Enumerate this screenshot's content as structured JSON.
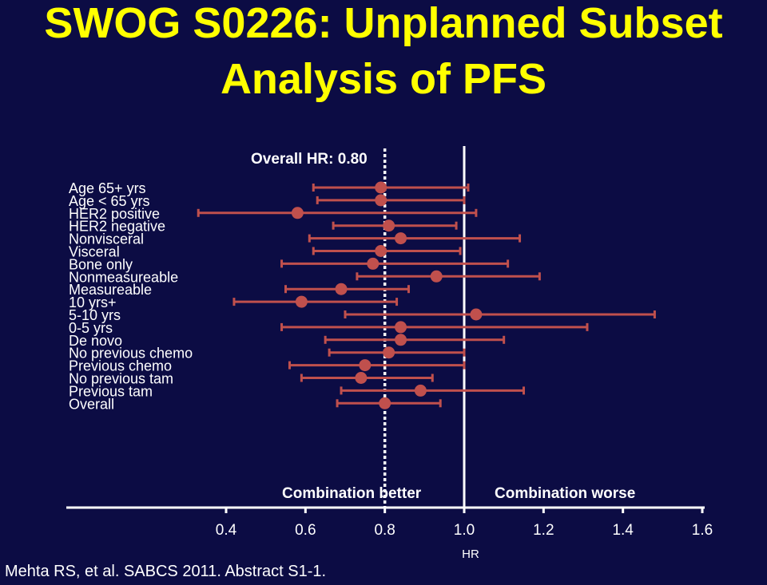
{
  "slide": {
    "title_line1": "SWOG S0226: Unplanned Subset",
    "title_line2": "Analysis of PFS",
    "citation": "Mehta RS, et al. SABCS 2011. Abstract S1-1."
  },
  "colors": {
    "background": "#0c0c44",
    "title": "#ffff00",
    "marker": "#c0504d",
    "text": "#ffffff"
  },
  "chart_data": {
    "type": "forest",
    "overall_label": "Overall HR: 0.80",
    "overall_hr": 0.8,
    "reference_hr": 1.0,
    "xlabel": "HR",
    "xlim": [
      0.4,
      1.6
    ],
    "xticks": [
      "0.4",
      "0.6",
      "0.8",
      "1.0",
      "1.2",
      "1.4",
      "1.6"
    ],
    "left_annotation": "Combination better",
    "right_annotation": "Combination worse",
    "rows": [
      {
        "label": "Age 65+ yrs",
        "hr": 0.79,
        "lo": 0.62,
        "hi": 1.01
      },
      {
        "label": "Age < 65 yrs",
        "hr": 0.79,
        "lo": 0.63,
        "hi": 1.0
      },
      {
        "label": "HER2 positive",
        "hr": 0.58,
        "lo": 0.33,
        "hi": 1.03
      },
      {
        "label": "HER2 negative",
        "hr": 0.81,
        "lo": 0.67,
        "hi": 0.98
      },
      {
        "label": "Nonvisceral",
        "hr": 0.84,
        "lo": 0.61,
        "hi": 1.14
      },
      {
        "label": "Visceral",
        "hr": 0.79,
        "lo": 0.62,
        "hi": 0.99
      },
      {
        "label": "Bone only",
        "hr": 0.77,
        "lo": 0.54,
        "hi": 1.11
      },
      {
        "label": "Nonmeasureable",
        "hr": 0.93,
        "lo": 0.73,
        "hi": 1.19
      },
      {
        "label": "Measureable",
        "hr": 0.69,
        "lo": 0.55,
        "hi": 0.86
      },
      {
        "label": "10 yrs+",
        "hr": 0.59,
        "lo": 0.42,
        "hi": 0.83
      },
      {
        "label": "5-10 yrs",
        "hr": 1.03,
        "lo": 0.7,
        "hi": 1.48
      },
      {
        "label": "0-5 yrs",
        "hr": 0.84,
        "lo": 0.54,
        "hi": 1.31
      },
      {
        "label": "De novo",
        "hr": 0.84,
        "lo": 0.65,
        "hi": 1.1
      },
      {
        "label": "No previous chemo",
        "hr": 0.81,
        "lo": 0.66,
        "hi": 1.0
      },
      {
        "label": "Previous chemo",
        "hr": 0.75,
        "lo": 0.56,
        "hi": 1.0
      },
      {
        "label": "No previous tam",
        "hr": 0.74,
        "lo": 0.59,
        "hi": 0.92
      },
      {
        "label": "Previous tam",
        "hr": 0.89,
        "lo": 0.69,
        "hi": 1.15
      },
      {
        "label": "Overall",
        "hr": 0.8,
        "lo": 0.68,
        "hi": 0.94
      }
    ]
  }
}
